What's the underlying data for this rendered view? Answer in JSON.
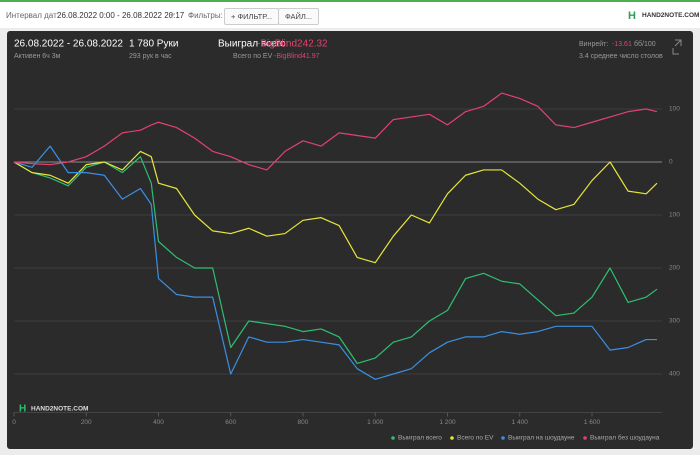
{
  "header": {
    "date_label": "Интервал дат:",
    "date_range": "26.08.2022 0:00 - 26.08.2022 20:17",
    "filters_label": "Фильтры:",
    "filter_button": "ФИЛЬТР...",
    "file_button": "ФАЙЛ...",
    "logo": "HAND2NOTE.COM"
  },
  "summary": {
    "period": "26.08.2022 - 26.08.2022",
    "active": "Активен 6ч 3м",
    "hands": "1 780 Руки",
    "rate": "293 рук в час",
    "won_label": "Выиграл всего:",
    "won_value": "-BigBlind242.32",
    "ev_label": "Всего по EV",
    "ev_value": "-BigBlind41.97",
    "winrate_label": "Винрейт:",
    "winrate_value": "-13.61",
    "winrate_unit": "бб/100",
    "tables": "3.4 среднее число столов"
  },
  "chart_data": {
    "type": "line",
    "watermark": "HAND2NOTE.COM",
    "x": [
      0,
      50,
      100,
      150,
      200,
      250,
      300,
      350,
      380,
      400,
      450,
      500,
      550,
      600,
      650,
      700,
      750,
      800,
      850,
      900,
      950,
      1000,
      1050,
      1100,
      1150,
      1200,
      1250,
      1300,
      1350,
      1400,
      1450,
      1500,
      1550,
      1600,
      1650,
      1700,
      1750,
      1780
    ],
    "xlim": [
      0,
      1780
    ],
    "xticks": [
      0,
      200,
      400,
      600,
      800,
      {
        "value": 1000,
        "label": "1 000"
      },
      {
        "value": 1200,
        "label": "1 200"
      },
      {
        "value": 1400,
        "label": "1 400"
      },
      {
        "value": 1600,
        "label": "1 600"
      }
    ],
    "ylim": [
      150,
      -450
    ],
    "yticks": [
      100,
      0,
      {
        "value": -100,
        "label": "100"
      },
      {
        "value": -200,
        "label": "200"
      },
      {
        "value": -300,
        "label": "300"
      },
      {
        "value": -400,
        "label": "400"
      }
    ],
    "grid": true,
    "legend": "bottom-right",
    "series": [
      {
        "name": "Выиграл всего",
        "color": "#2fbf71",
        "values": [
          0,
          -20,
          -30,
          -45,
          -10,
          0,
          -20,
          10,
          -40,
          -150,
          -180,
          -200,
          -200,
          -350,
          -300,
          -305,
          -310,
          -320,
          -315,
          -330,
          -380,
          -370,
          -340,
          -330,
          -300,
          -280,
          -220,
          -210,
          -225,
          -230,
          -260,
          -290,
          -285,
          -255,
          -200,
          -265,
          -255,
          -240
        ]
      },
      {
        "name": "Всего по EV",
        "color": "#e6e63a",
        "values": [
          0,
          -20,
          -25,
          -40,
          -5,
          0,
          -15,
          20,
          10,
          -40,
          -50,
          -100,
          -130,
          -135,
          -125,
          -140,
          -135,
          -110,
          -105,
          -120,
          -180,
          -190,
          -140,
          -100,
          -115,
          -60,
          -25,
          -15,
          -15,
          -40,
          -70,
          -90,
          -80,
          -35,
          0,
          -55,
          -60,
          -40
        ]
      },
      {
        "name": "Выиграл на шоудауне",
        "color": "#3b8fe3",
        "values": [
          0,
          -10,
          30,
          -20,
          -20,
          -25,
          -70,
          -50,
          -80,
          -220,
          -250,
          -255,
          -255,
          -400,
          -330,
          -340,
          -340,
          -335,
          -340,
          -345,
          -390,
          -410,
          -400,
          -390,
          -360,
          -340,
          -330,
          -330,
          -320,
          -325,
          -320,
          -310,
          -310,
          -310,
          -355,
          -350,
          -335,
          -335
        ]
      },
      {
        "name": "Выиграл без шоудауна",
        "color": "#e0426f",
        "values": [
          0,
          -3,
          -5,
          0,
          10,
          30,
          55,
          60,
          70,
          75,
          65,
          45,
          20,
          10,
          -5,
          -15,
          20,
          40,
          30,
          55,
          50,
          45,
          80,
          85,
          90,
          70,
          95,
          105,
          130,
          120,
          105,
          70,
          65,
          75,
          85,
          95,
          100,
          95
        ]
      }
    ]
  }
}
